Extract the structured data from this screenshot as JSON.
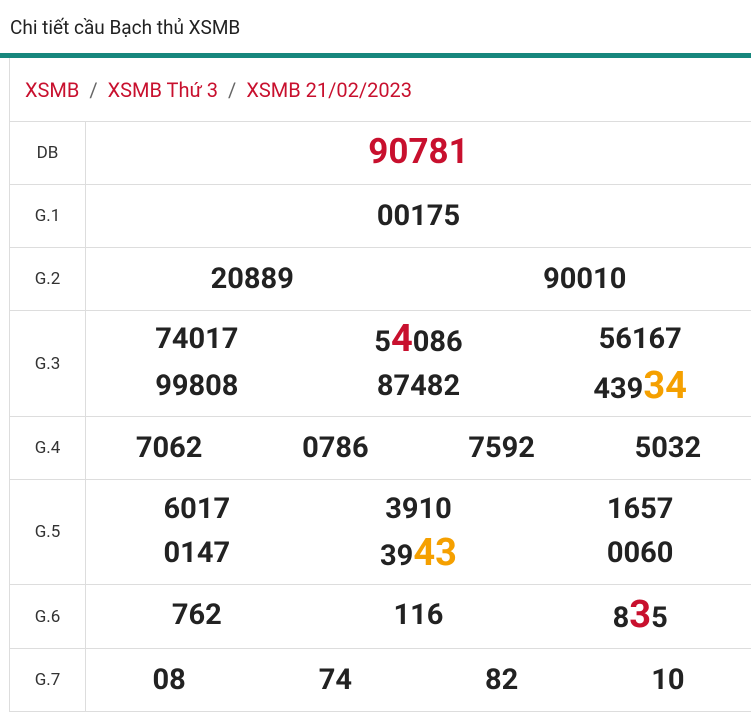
{
  "header": {
    "title": "Chi tiết cầu Bạch thủ XSMB"
  },
  "breadcrumb": [
    "XSMB",
    "XSMB Thứ 3",
    "XSMB 21/02/2023"
  ],
  "table": {
    "rows": [
      {
        "label": "DB",
        "numbers": [
          {
            "parts": [
              {
                "text": "90781",
                "color": "#c8102e"
              }
            ]
          }
        ]
      },
      {
        "label": "G.1",
        "numbers": [
          "00175"
        ]
      },
      {
        "label": "G.2",
        "numbers": [
          "20889",
          "90010"
        ]
      },
      {
        "label": "G.3",
        "numbers": [
          "74017",
          {
            "parts": [
              {
                "text": "5"
              },
              {
                "text": "4",
                "color": "#c8102e"
              },
              {
                "text": "086"
              }
            ]
          },
          "56167",
          "99808",
          "87482",
          {
            "parts": [
              {
                "text": "439"
              },
              {
                "text": "34",
                "color": "#f5a000"
              }
            ]
          }
        ]
      },
      {
        "label": "G.4",
        "numbers": [
          "7062",
          "0786",
          "7592",
          "5032"
        ]
      },
      {
        "label": "G.5",
        "numbers": [
          "6017",
          "3910",
          "1657",
          "0147",
          {
            "parts": [
              {
                "text": "39"
              },
              {
                "text": "43",
                "color": "#f5a000"
              }
            ]
          },
          "0060"
        ]
      },
      {
        "label": "G.6",
        "numbers": [
          "762",
          "116",
          {
            "parts": [
              {
                "text": "8"
              },
              {
                "text": "3",
                "color": "#c8102e"
              },
              {
                "text": "5"
              }
            ]
          }
        ]
      },
      {
        "label": "G.7",
        "numbers": [
          "08",
          "74",
          "82",
          "10"
        ]
      }
    ]
  }
}
